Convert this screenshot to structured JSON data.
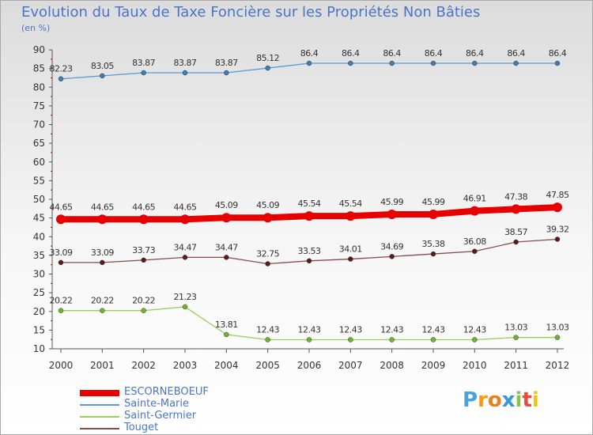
{
  "chart_data": {
    "type": "line",
    "title": "Evolution du Taux de Taxe Foncière sur les Propriétés Non Bâties",
    "ylabel": "(en %)",
    "xlabel": "",
    "categories": [
      "2000",
      "2001",
      "2002",
      "2003",
      "2004",
      "2005",
      "2006",
      "2007",
      "2008",
      "2009",
      "2010",
      "2011",
      "2012"
    ],
    "ylim": [
      10,
      90
    ],
    "yticks": [
      10,
      15,
      20,
      25,
      30,
      35,
      40,
      45,
      50,
      55,
      60,
      65,
      70,
      75,
      80,
      85,
      90
    ],
    "grid": false,
    "legend_position": "bottom-left",
    "series": [
      {
        "name": "Sainte-Marie",
        "color": "#5b9bd5",
        "marker": "#3f7fb8",
        "style": "thin",
        "values": [
          82.23,
          83.05,
          83.87,
          83.87,
          83.87,
          85.12,
          86.4,
          86.4,
          86.4,
          86.4,
          86.4,
          86.4,
          86.4
        ],
        "labels": [
          "82.23",
          "83.05",
          "83.87",
          "83.87",
          "83.87",
          "85.12",
          "86.4",
          "86.4",
          "86.4",
          "86.4",
          "86.4",
          "86.4",
          "86.4"
        ]
      },
      {
        "name": "Touget",
        "color": "#8b4a4a",
        "marker": "#5c1a1a",
        "style": "thin",
        "values": [
          33.09,
          33.09,
          33.73,
          34.47,
          34.47,
          32.75,
          33.53,
          34.01,
          34.69,
          35.38,
          36.08,
          38.57,
          39.32
        ],
        "labels": [
          "33.09",
          "33.09",
          "33.73",
          "34.47",
          "34.47",
          "32.75",
          "33.53",
          "34.01",
          "34.69",
          "35.38",
          "36.08",
          "38.57",
          "39.32"
        ]
      },
      {
        "name": "Saint-Germier",
        "color": "#9acd5a",
        "marker": "#6fb52c",
        "style": "thin",
        "values": [
          20.22,
          20.22,
          20.22,
          21.23,
          13.81,
          12.43,
          12.43,
          12.43,
          12.43,
          12.43,
          12.43,
          13.03,
          13.03
        ],
        "labels": [
          "20.22",
          "20.22",
          "20.22",
          "21.23",
          "13.81",
          "12.43",
          "12.43",
          "12.43",
          "12.43",
          "12.43",
          "12.43",
          "13.03",
          "13.03"
        ]
      },
      {
        "name": "ESCORNEBOEUF",
        "color": "#e80000",
        "marker": "#e80000",
        "style": "thick",
        "values": [
          44.65,
          44.65,
          44.65,
          44.65,
          45.09,
          45.09,
          45.54,
          45.54,
          45.99,
          45.99,
          46.91,
          47.38,
          47.85
        ],
        "labels": [
          "44.65",
          "44.65",
          "44.65",
          "44.65",
          "45.09",
          "45.09",
          "45.54",
          "45.54",
          "45.99",
          "45.99",
          "46.91",
          "47.38",
          "47.85"
        ]
      }
    ],
    "legend": [
      "ESCORNEBOEUF",
      "Sainte-Marie",
      "Saint-Germier",
      "Touget"
    ]
  },
  "logo": {
    "text": "Proxiti",
    "colors": [
      "#4aa3df",
      "#f39c12",
      "#e67e22",
      "#3498db",
      "#8bc34a",
      "#e74c3c",
      "#f1c40f"
    ]
  }
}
